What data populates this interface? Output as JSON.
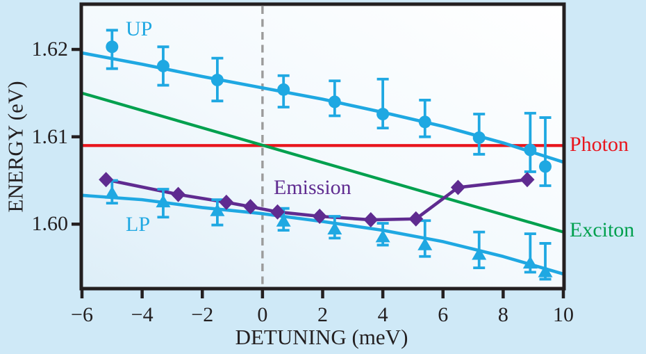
{
  "figure": {
    "background_color": "#cfe9f7",
    "frame_color": "#231f20",
    "plot_gradient": [
      "#ffffff",
      "#f3f9fd",
      "#ddeef8"
    ]
  },
  "chart_data": {
    "type": "scatter",
    "title": "",
    "xlabel": "DETUNING (meV)",
    "ylabel": "ENERGY (eV)",
    "xlim": [
      -6,
      10
    ],
    "ylim": [
      1.5927,
      1.6251
    ],
    "grid": false,
    "x_ticks": {
      "values": [
        -6,
        -4,
        -2,
        0,
        2,
        4,
        6,
        8,
        10
      ],
      "labels": [
        "−6",
        "−4",
        "−2",
        "0",
        "2",
        "4",
        "6",
        "8",
        "10"
      ]
    },
    "y_ticks": {
      "values": [
        1.6,
        1.61,
        1.62
      ],
      "labels": [
        "1.60",
        "1.61",
        "1.62"
      ]
    },
    "zero_detuning_dashed_line": {
      "x": 0,
      "color": "#9b9b9b"
    },
    "photon_line": {
      "label": "Photon",
      "energy_eV": 1.609,
      "color": "#e8151d"
    },
    "exciton_line": {
      "label": "Exciton",
      "color": "#00a04e",
      "points": [
        [
          -6,
          1.615
        ],
        [
          10,
          1.5991
        ]
      ]
    },
    "polariton_theory_curves": {
      "color": "#1fa8e2",
      "up": [
        [
          -6,
          1.6196
        ],
        [
          -4,
          1.6183
        ],
        [
          -2,
          1.6169
        ],
        [
          0,
          1.6156
        ],
        [
          2,
          1.6143
        ],
        [
          4,
          1.6128
        ],
        [
          6,
          1.6112
        ],
        [
          8,
          1.6093
        ],
        [
          10,
          1.6071
        ]
      ],
      "lp": [
        [
          -6,
          1.6033
        ],
        [
          -4,
          1.6028
        ],
        [
          -2,
          1.6019
        ],
        [
          0,
          1.6012
        ],
        [
          2,
          1.6003
        ],
        [
          4,
          1.5993
        ],
        [
          6,
          1.598
        ],
        [
          8,
          1.5963
        ],
        [
          10,
          1.5943
        ]
      ]
    },
    "series": [
      {
        "name": "UP",
        "marker": "circle",
        "color": "#1fa8e2",
        "line": false,
        "points": [
          {
            "d": -5.0,
            "e": 1.6203,
            "lo": 1.6178,
            "hi": 1.6222
          },
          {
            "d": -3.3,
            "e": 1.6181,
            "lo": 1.6159,
            "hi": 1.6203
          },
          {
            "d": -1.5,
            "e": 1.6165,
            "lo": 1.6141,
            "hi": 1.619
          },
          {
            "d": 0.7,
            "e": 1.6154,
            "lo": 1.6134,
            "hi": 1.617
          },
          {
            "d": 2.4,
            "e": 1.614,
            "lo": 1.6124,
            "hi": 1.6164
          },
          {
            "d": 4.0,
            "e": 1.6126,
            "lo": 1.611,
            "hi": 1.6166
          },
          {
            "d": 5.4,
            "e": 1.6117,
            "lo": 1.61,
            "hi": 1.6142
          },
          {
            "d": 7.2,
            "e": 1.6099,
            "lo": 1.608,
            "hi": 1.6126
          },
          {
            "d": 8.9,
            "e": 1.6085,
            "lo": 1.606,
            "hi": 1.6127
          },
          {
            "d": 9.4,
            "e": 1.6066,
            "lo": 1.6044,
            "hi": 1.6122
          }
        ]
      },
      {
        "name": "LP",
        "marker": "triangle",
        "color": "#1fa8e2",
        "line": false,
        "points": [
          {
            "d": -5.0,
            "e": 1.6036,
            "lo": 1.6024,
            "hi": 1.605
          },
          {
            "d": -3.3,
            "e": 1.6026,
            "lo": 1.6008,
            "hi": 1.604
          },
          {
            "d": -1.5,
            "e": 1.6016,
            "lo": 1.5999,
            "hi": 1.6028
          },
          {
            "d": 0.7,
            "e": 1.6004,
            "lo": 1.5993,
            "hi": 1.6018
          },
          {
            "d": 2.4,
            "e": 1.5995,
            "lo": 1.5984,
            "hi": 1.6009
          },
          {
            "d": 4.0,
            "e": 1.5986,
            "lo": 1.5976,
            "hi": 1.6001
          },
          {
            "d": 5.4,
            "e": 1.5977,
            "lo": 1.5963,
            "hi": 1.6004
          },
          {
            "d": 7.2,
            "e": 1.5966,
            "lo": 1.595,
            "hi": 1.5991
          },
          {
            "d": 8.9,
            "e": 1.5956,
            "lo": 1.5945,
            "hi": 1.5989
          },
          {
            "d": 9.4,
            "e": 1.5946,
            "lo": 1.5937,
            "hi": 1.5978
          }
        ]
      },
      {
        "name": "Emission",
        "marker": "diamond",
        "color": "#5f2b90",
        "line": true,
        "points": [
          {
            "d": -5.2,
            "e": 1.6051
          },
          {
            "d": -2.8,
            "e": 1.6034
          },
          {
            "d": -1.2,
            "e": 1.6025
          },
          {
            "d": -0.4,
            "e": 1.602
          },
          {
            "d": 0.5,
            "e": 1.6014
          },
          {
            "d": 1.9,
            "e": 1.6009
          },
          {
            "d": 3.6,
            "e": 1.6005
          },
          {
            "d": 5.1,
            "e": 1.6006
          },
          {
            "d": 6.5,
            "e": 1.6042
          },
          {
            "d": 8.8,
            "e": 1.6051
          }
        ]
      }
    ],
    "labels": {
      "up": "UP",
      "lp": "LP",
      "emission": "Emission",
      "photon": "Photon",
      "exciton": "Exciton"
    }
  }
}
